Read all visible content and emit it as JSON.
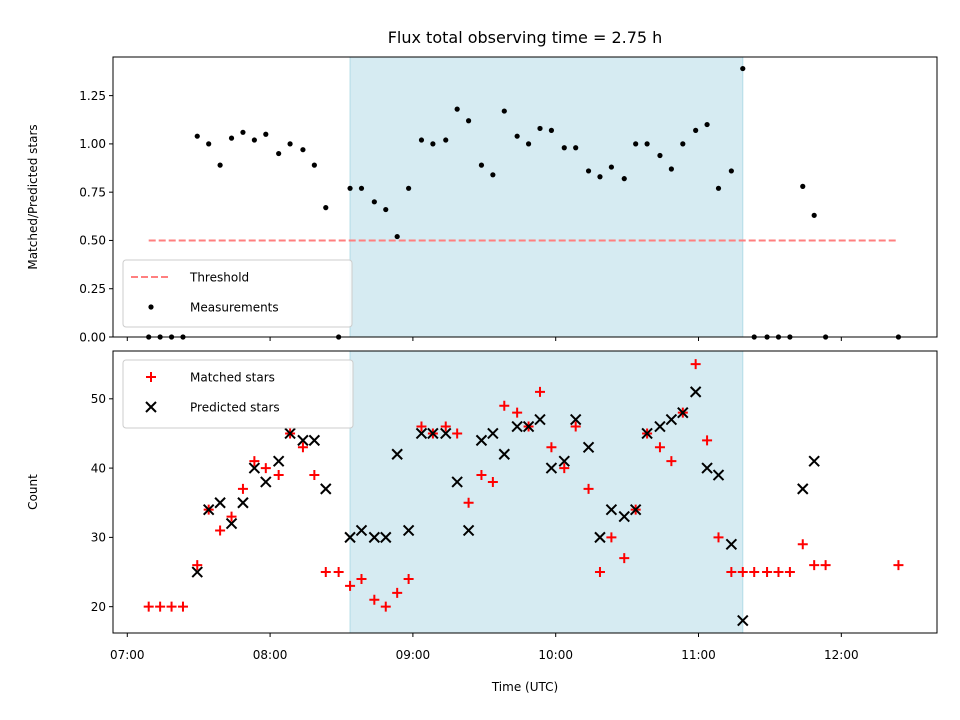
{
  "chart_data": {
    "type": "scatter",
    "title": "Flux total observing time = 2.75 h",
    "xlabel": "Time (UTC)",
    "x_unit": "hours UTC",
    "xlim": [
      6.9,
      12.67
    ],
    "x_ticks": [
      {
        "value": 7,
        "label": "07:00"
      },
      {
        "value": 8,
        "label": "08:00"
      },
      {
        "value": 9,
        "label": "09:00"
      },
      {
        "value": 10,
        "label": "10:00"
      },
      {
        "value": 11,
        "label": "11:00"
      },
      {
        "value": 12,
        "label": "12:00"
      }
    ],
    "shaded_span": {
      "x_start": 8.56,
      "x_end": 11.31,
      "color": "#add8e6"
    },
    "panels": [
      {
        "ylabel": "Matched/Predicted stars",
        "ylim": [
          0,
          1.45
        ],
        "y_ticks": [
          {
            "value": 0,
            "label": "0.00"
          },
          {
            "value": 0.25,
            "label": "0.25"
          },
          {
            "value": 0.5,
            "label": "0.50"
          },
          {
            "value": 0.75,
            "label": "0.75"
          },
          {
            "value": 1.0,
            "label": "1.00"
          },
          {
            "value": 1.25,
            "label": "1.25"
          }
        ],
        "legend": {
          "position": "lower-left",
          "entries": [
            "Threshold",
            "Measurements"
          ]
        },
        "threshold": {
          "name": "Threshold",
          "value": 0.5,
          "x_start": 7.15,
          "x_end": 12.4,
          "color": "#ff7f7f"
        },
        "series": [
          {
            "name": "Measurements",
            "color": "#000000",
            "marker": "dot",
            "points": [
              [
                7.15,
                0
              ],
              [
                7.23,
                0
              ],
              [
                7.31,
                0
              ],
              [
                7.39,
                0
              ],
              [
                7.49,
                1.04
              ],
              [
                7.57,
                1.0
              ],
              [
                7.65,
                0.89
              ],
              [
                7.73,
                1.03
              ],
              [
                7.81,
                1.06
              ],
              [
                7.89,
                1.02
              ],
              [
                7.97,
                1.05
              ],
              [
                8.06,
                0.95
              ],
              [
                8.14,
                1.0
              ],
              [
                8.23,
                0.97
              ],
              [
                8.31,
                0.89
              ],
              [
                8.39,
                0.67
              ],
              [
                8.48,
                0
              ],
              [
                8.56,
                0.77
              ],
              [
                8.64,
                0.77
              ],
              [
                8.73,
                0.7
              ],
              [
                8.81,
                0.66
              ],
              [
                8.89,
                0.52
              ],
              [
                8.97,
                0.77
              ],
              [
                9.06,
                1.02
              ],
              [
                9.14,
                1.0
              ],
              [
                9.23,
                1.02
              ],
              [
                9.31,
                1.18
              ],
              [
                9.39,
                1.12
              ],
              [
                9.48,
                0.89
              ],
              [
                9.56,
                0.84
              ],
              [
                9.64,
                1.17
              ],
              [
                9.73,
                1.04
              ],
              [
                9.81,
                1.0
              ],
              [
                9.89,
                1.08
              ],
              [
                9.97,
                1.07
              ],
              [
                10.06,
                0.98
              ],
              [
                10.14,
                0.98
              ],
              [
                10.23,
                0.86
              ],
              [
                10.31,
                0.83
              ],
              [
                10.39,
                0.88
              ],
              [
                10.48,
                0.82
              ],
              [
                10.56,
                1.0
              ],
              [
                10.64,
                1.0
              ],
              [
                10.73,
                0.94
              ],
              [
                10.81,
                0.87
              ],
              [
                10.89,
                1.0
              ],
              [
                10.98,
                1.07
              ],
              [
                11.06,
                1.1
              ],
              [
                11.14,
                0.77
              ],
              [
                11.23,
                0.86
              ],
              [
                11.31,
                1.39
              ],
              [
                11.39,
                0
              ],
              [
                11.48,
                0
              ],
              [
                11.56,
                0
              ],
              [
                11.64,
                0
              ],
              [
                11.73,
                0.78
              ],
              [
                11.81,
                0.63
              ],
              [
                11.89,
                0
              ],
              [
                12.4,
                0
              ]
            ]
          }
        ]
      },
      {
        "ylabel": "Count",
        "ylim": [
          16.2,
          56.9
        ],
        "y_ticks": [
          {
            "value": 20,
            "label": "20"
          },
          {
            "value": 30,
            "label": "30"
          },
          {
            "value": 40,
            "label": "40"
          },
          {
            "value": 50,
            "label": "50"
          }
        ],
        "legend": {
          "position": "top-left",
          "entries": [
            "Matched stars",
            "Predicted stars"
          ]
        },
        "series": [
          {
            "name": "Matched stars",
            "color": "#ff0000",
            "marker": "plus",
            "points": [
              [
                7.15,
                20
              ],
              [
                7.23,
                20
              ],
              [
                7.31,
                20
              ],
              [
                7.39,
                20
              ],
              [
                7.49,
                26
              ],
              [
                7.57,
                34
              ],
              [
                7.65,
                31
              ],
              [
                7.73,
                33
              ],
              [
                7.81,
                37
              ],
              [
                7.89,
                41
              ],
              [
                7.97,
                40
              ],
              [
                8.06,
                39
              ],
              [
                8.14,
                45
              ],
              [
                8.23,
                43
              ],
              [
                8.31,
                39
              ],
              [
                8.39,
                25
              ],
              [
                8.48,
                25
              ],
              [
                8.56,
                23
              ],
              [
                8.64,
                24
              ],
              [
                8.73,
                21
              ],
              [
                8.81,
                20
              ],
              [
                8.89,
                22
              ],
              [
                8.97,
                24
              ],
              [
                9.06,
                46
              ],
              [
                9.14,
                45
              ],
              [
                9.23,
                46
              ],
              [
                9.31,
                45
              ],
              [
                9.39,
                35
              ],
              [
                9.48,
                39
              ],
              [
                9.56,
                38
              ],
              [
                9.64,
                49
              ],
              [
                9.73,
                48
              ],
              [
                9.81,
                46
              ],
              [
                9.89,
                51
              ],
              [
                9.97,
                43
              ],
              [
                10.06,
                40
              ],
              [
                10.14,
                46
              ],
              [
                10.23,
                37
              ],
              [
                10.31,
                25
              ],
              [
                10.39,
                30
              ],
              [
                10.48,
                27
              ],
              [
                10.56,
                34
              ],
              [
                10.64,
                45
              ],
              [
                10.73,
                43
              ],
              [
                10.81,
                41
              ],
              [
                10.89,
                48
              ],
              [
                10.98,
                55
              ],
              [
                11.06,
                44
              ],
              [
                11.14,
                30
              ],
              [
                11.23,
                25
              ],
              [
                11.31,
                25
              ],
              [
                11.39,
                25
              ],
              [
                11.48,
                25
              ],
              [
                11.56,
                25
              ],
              [
                11.64,
                25
              ],
              [
                11.73,
                29
              ],
              [
                11.81,
                26
              ],
              [
                11.89,
                26
              ],
              [
                12.4,
                26
              ]
            ]
          },
          {
            "name": "Predicted stars",
            "color": "#000000",
            "marker": "x",
            "points": [
              [
                7.49,
                25
              ],
              [
                7.57,
                34
              ],
              [
                7.65,
                35
              ],
              [
                7.73,
                32
              ],
              [
                7.81,
                35
              ],
              [
                7.89,
                40
              ],
              [
                7.97,
                38
              ],
              [
                8.06,
                41
              ],
              [
                8.14,
                45
              ],
              [
                8.23,
                44
              ],
              [
                8.31,
                44
              ],
              [
                8.39,
                37
              ],
              [
                8.56,
                30
              ],
              [
                8.64,
                31
              ],
              [
                8.73,
                30
              ],
              [
                8.81,
                30
              ],
              [
                8.89,
                42
              ],
              [
                8.97,
                31
              ],
              [
                9.06,
                45
              ],
              [
                9.14,
                45
              ],
              [
                9.23,
                45
              ],
              [
                9.31,
                38
              ],
              [
                9.39,
                31
              ],
              [
                9.48,
                44
              ],
              [
                9.56,
                45
              ],
              [
                9.64,
                42
              ],
              [
                9.73,
                46
              ],
              [
                9.81,
                46
              ],
              [
                9.89,
                47
              ],
              [
                9.97,
                40
              ],
              [
                10.06,
                41
              ],
              [
                10.14,
                47
              ],
              [
                10.23,
                43
              ],
              [
                10.31,
                30
              ],
              [
                10.39,
                34
              ],
              [
                10.48,
                33
              ],
              [
                10.56,
                34
              ],
              [
                10.64,
                45
              ],
              [
                10.73,
                46
              ],
              [
                10.81,
                47
              ],
              [
                10.89,
                48
              ],
              [
                10.98,
                51
              ],
              [
                11.06,
                40
              ],
              [
                11.14,
                39
              ],
              [
                11.23,
                29
              ],
              [
                11.31,
                18
              ],
              [
                11.73,
                37
              ],
              [
                11.81,
                41
              ]
            ]
          }
        ]
      }
    ]
  }
}
